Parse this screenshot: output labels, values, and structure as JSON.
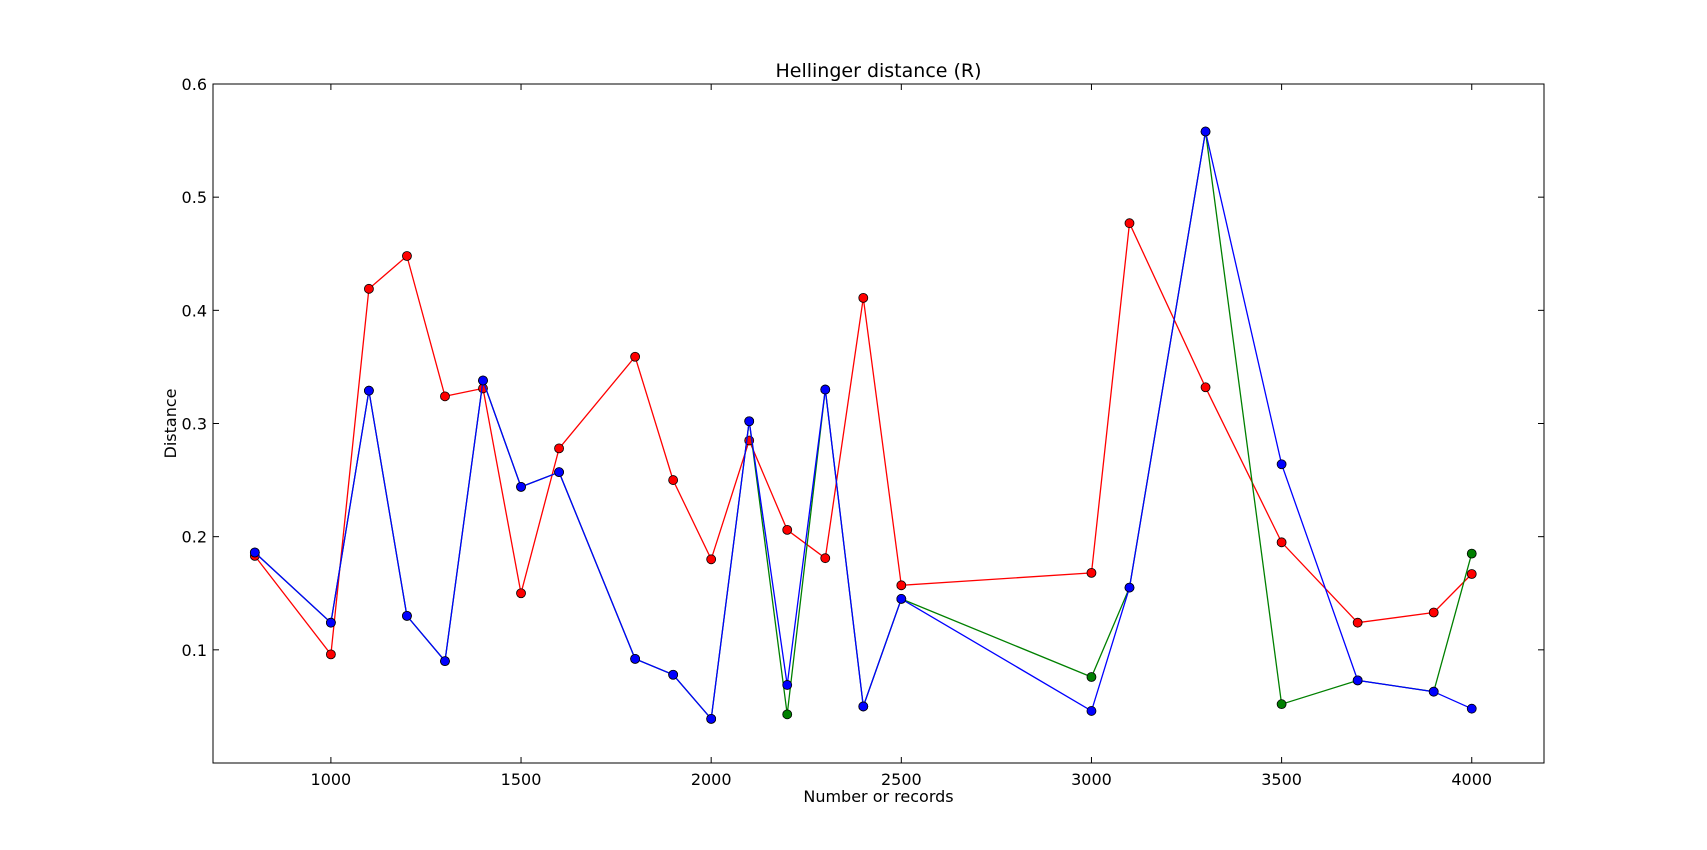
{
  "chart_data": {
    "type": "line",
    "title": "Hellinger distance (R)",
    "xlabel": "Number or records",
    "ylabel": "Distance",
    "xlim": [
      690,
      4190
    ],
    "ylim": [
      0.0,
      0.6
    ],
    "x_ticks": [
      1000,
      1500,
      2000,
      2500,
      3000,
      3500,
      4000
    ],
    "y_ticks": [
      0.1,
      0.2,
      0.3,
      0.4,
      0.5,
      0.6
    ],
    "grid": false,
    "legend": "none",
    "series": [
      {
        "color": "#ff0000",
        "points": [
          [
            800,
            0.183
          ],
          [
            1000,
            0.096
          ],
          [
            1100,
            0.419
          ],
          [
            1200,
            0.448
          ],
          [
            1300,
            0.324
          ],
          [
            1400,
            0.331
          ],
          [
            1500,
            0.15
          ],
          [
            1600,
            0.278
          ],
          [
            1800,
            0.359
          ],
          [
            1900,
            0.25
          ],
          [
            2000,
            0.18
          ],
          [
            2100,
            0.285
          ],
          [
            2200,
            0.206
          ],
          [
            2300,
            0.181
          ],
          [
            2400,
            0.411
          ],
          [
            2500,
            0.157
          ],
          [
            3000,
            0.168
          ],
          [
            3100,
            0.477
          ],
          [
            3300,
            0.332
          ],
          [
            3500,
            0.195
          ],
          [
            3700,
            0.124
          ],
          [
            3900,
            0.133
          ],
          [
            4000,
            0.167
          ]
        ]
      },
      {
        "color": "#008000",
        "points": [
          [
            800,
            0.186
          ],
          [
            1000,
            0.124
          ],
          [
            1100,
            0.329
          ],
          [
            1200,
            0.13
          ],
          [
            1300,
            0.09
          ],
          [
            1400,
            0.338
          ],
          [
            1500,
            0.244
          ],
          [
            1600,
            0.257
          ],
          [
            1800,
            0.092
          ],
          [
            1900,
            0.078
          ],
          [
            2000,
            0.039
          ],
          [
            2100,
            0.302
          ],
          [
            2200,
            0.043
          ],
          [
            2300,
            0.33
          ],
          [
            2400,
            0.05
          ],
          [
            2500,
            0.145
          ],
          [
            3000,
            0.076
          ],
          [
            3100,
            0.155
          ],
          [
            3300,
            0.558
          ],
          [
            3500,
            0.052
          ],
          [
            3700,
            0.073
          ],
          [
            3900,
            0.063
          ],
          [
            4000,
            0.185
          ]
        ]
      },
      {
        "color": "#0000ff",
        "points": [
          [
            800,
            0.186
          ],
          [
            1000,
            0.124
          ],
          [
            1100,
            0.329
          ],
          [
            1200,
            0.13
          ],
          [
            1300,
            0.09
          ],
          [
            1400,
            0.338
          ],
          [
            1500,
            0.244
          ],
          [
            1600,
            0.257
          ],
          [
            1800,
            0.092
          ],
          [
            1900,
            0.078
          ],
          [
            2000,
            0.039
          ],
          [
            2100,
            0.302
          ],
          [
            2200,
            0.069
          ],
          [
            2300,
            0.33
          ],
          [
            2400,
            0.05
          ],
          [
            2500,
            0.145
          ],
          [
            3000,
            0.046
          ],
          [
            3100,
            0.155
          ],
          [
            3300,
            0.558
          ],
          [
            3500,
            0.264
          ],
          [
            3700,
            0.073
          ],
          [
            3900,
            0.063
          ],
          [
            4000,
            0.048
          ]
        ]
      }
    ]
  }
}
